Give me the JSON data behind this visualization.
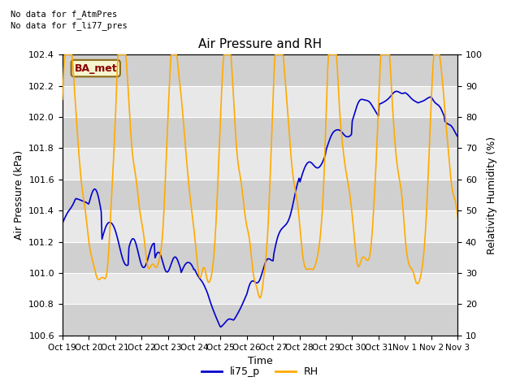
{
  "title": "Air Pressure and RH",
  "xlabel": "Time",
  "ylabel_left": "Air Pressure (kPa)",
  "ylabel_right": "Relativity Humidity (%)",
  "annotation": "BA_met",
  "ylim_left": [
    100.6,
    102.4
  ],
  "ylim_right": [
    10,
    100
  ],
  "yticks_left": [
    100.6,
    100.8,
    101.0,
    101.2,
    101.4,
    101.6,
    101.8,
    102.0,
    102.2,
    102.4
  ],
  "yticks_right": [
    10,
    20,
    30,
    40,
    50,
    60,
    70,
    80,
    90,
    100
  ],
  "line_color_blue": "#0000cc",
  "line_color_orange": "#ffaa00",
  "xtick_labels": [
    "Oct 19",
    "Oct 20",
    "Oct 21",
    "Oct 22",
    "Oct 23",
    "Oct 24",
    "Oct 25",
    "Oct 26",
    "Oct 27",
    "Oct 28",
    "Oct 29",
    "Oct 30",
    "Oct 31",
    "Nov 1",
    "Nov 2",
    "Nov 3"
  ],
  "xtick_positions": [
    0,
    1,
    2,
    3,
    4,
    5,
    6,
    7,
    8,
    9,
    10,
    11,
    12,
    13,
    14,
    15
  ],
  "band_colors": [
    "#dcdcdc",
    "#e8e8e8"
  ],
  "figsize": [
    6.4,
    4.8
  ],
  "dpi": 100
}
